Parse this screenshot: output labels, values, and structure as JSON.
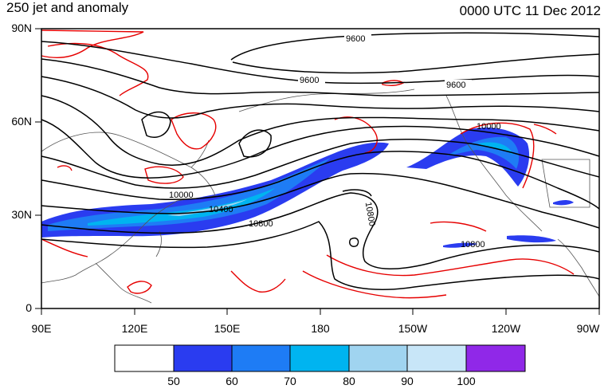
{
  "title": "250 jet and anomaly",
  "date": "0000 UTC 11 Dec 2012",
  "y_ticks": [
    "90N",
    "60N",
    "30N",
    "0"
  ],
  "x_ticks": [
    "90E",
    "120E",
    "150E",
    "180",
    "150W",
    "120W",
    "90W"
  ],
  "contour_labels": [
    "9600",
    "9600",
    "9600",
    "10000",
    "10400",
    "10800",
    "10800",
    "10800",
    "10000"
  ],
  "colorbar": {
    "labels": [
      "50",
      "60",
      "70",
      "80",
      "90",
      "100"
    ],
    "colors": [
      "#ffffff",
      "#2a3cf0",
      "#1e7cf5",
      "#00b4f0",
      "#a0d4f0",
      "#c8e6f8",
      "#9028e8"
    ]
  },
  "colors": {
    "contour": "#000000",
    "anomaly": "#e60000",
    "coast": "#555555"
  }
}
